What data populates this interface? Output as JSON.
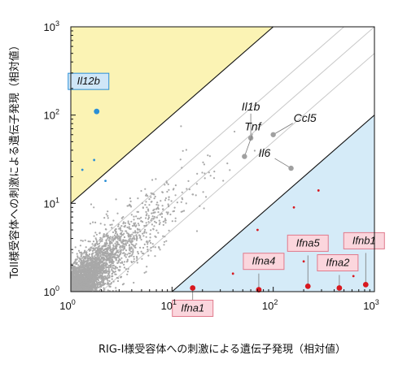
{
  "chart_data": {
    "type": "scatter",
    "xscale": "log",
    "yscale": "log",
    "xlim": [
      1,
      1000
    ],
    "ylim": [
      1,
      1000
    ],
    "xticks": [
      {
        "base": "10",
        "exp": "0",
        "value": 1
      },
      {
        "base": "10",
        "exp": "1",
        "value": 10
      },
      {
        "base": "10",
        "exp": "2",
        "value": 100
      },
      {
        "base": "10",
        "exp": "3",
        "value": 1000
      }
    ],
    "yticks": [
      {
        "base": "10",
        "exp": "0",
        "value": 1
      },
      {
        "base": "10",
        "exp": "1",
        "value": 10
      },
      {
        "base": "10",
        "exp": "2",
        "value": 100
      },
      {
        "base": "10",
        "exp": "3",
        "value": 1000
      }
    ],
    "xlabel": "RIG-I様受容体への刺激による遺伝子発現（相対値）",
    "ylabel": "Toll様受容体への刺激による遺伝子発現（相対値）",
    "regions": [
      {
        "name": "toll-enriched",
        "color": "#fbf3b4",
        "y_over_x_min": 10
      },
      {
        "name": "rig-enriched",
        "color": "#d5ebf8",
        "y_over_x_max": 0.1
      }
    ],
    "diagonals": [
      {
        "ratio": 10,
        "color": "#111111"
      },
      {
        "ratio": 2,
        "color": "#c8c8c8"
      },
      {
        "ratio": 1,
        "color": "#c8c8c8"
      },
      {
        "ratio": 0.5,
        "color": "#c8c8c8"
      },
      {
        "ratio": 0.1,
        "color": "#111111"
      }
    ],
    "highlighted_genes": [
      {
        "gene": "Il12b",
        "x": 1.8,
        "y": 110,
        "color": "#2b8fd6",
        "label_style": "boxed-blue"
      },
      {
        "gene": "Il1b",
        "x": 60,
        "y": 55,
        "color": "#a0a0a0",
        "label_style": "plain"
      },
      {
        "gene": "Tnf",
        "x": 52,
        "y": 34,
        "color": "#a0a0a0",
        "label_style": "plain"
      },
      {
        "gene": "Ccl5",
        "x": 100,
        "y": 60,
        "color": "#a0a0a0",
        "label_style": "plain"
      },
      {
        "gene": "Il6",
        "x": 150,
        "y": 25,
        "color": "#a0a0a0",
        "label_style": "plain"
      },
      {
        "gene": "Ifna1",
        "x": 16,
        "y": 1.1,
        "color": "#d8181f",
        "label_style": "boxed-pink"
      },
      {
        "gene": "Ifna4",
        "x": 72,
        "y": 1.05,
        "color": "#d8181f",
        "label_style": "boxed-pink"
      },
      {
        "gene": "Ifna5",
        "x": 220,
        "y": 1.15,
        "color": "#d8181f",
        "label_style": "boxed-pink"
      },
      {
        "gene": "Ifna2",
        "x": 450,
        "y": 1.1,
        "color": "#d8181f",
        "label_style": "boxed-pink"
      },
      {
        "gene": "Ifnb1",
        "x": 820,
        "y": 1.2,
        "color": "#d8181f",
        "label_style": "boxed-pink"
      }
    ],
    "background_points": {
      "description_count": 3000,
      "color": "#a8a8a8",
      "minor_colors": [
        "#2b8fd6",
        "#d8181f"
      ]
    },
    "grid": false,
    "legend": "none"
  }
}
